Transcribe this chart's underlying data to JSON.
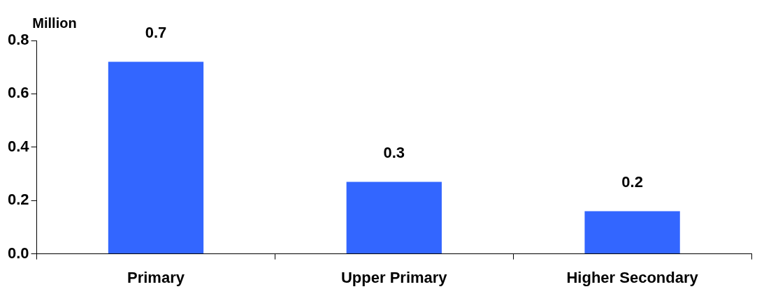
{
  "chart_data": {
    "type": "bar",
    "ylabel": "Million",
    "categories": [
      "Primary",
      "Upper Primary",
      "Higher Secondary"
    ],
    "values": [
      0.72,
      0.27,
      0.16
    ],
    "value_labels": [
      "0.7",
      "0.3",
      "0.2"
    ],
    "color": "#3366ff",
    "ylim": [
      0,
      0.8
    ],
    "yticks": [
      {
        "value": 0,
        "label": "0.0"
      },
      {
        "value": 0.2,
        "label": "0.2"
      },
      {
        "value": 0.4,
        "label": "0.4"
      },
      {
        "value": 0.6,
        "label": "0.6"
      },
      {
        "value": 0.8,
        "label": "0.8"
      }
    ],
    "grid": false,
    "legend": false
  }
}
